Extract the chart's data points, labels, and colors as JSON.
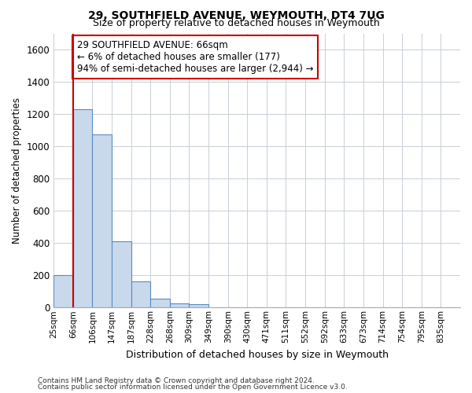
{
  "title1": "29, SOUTHFIELD AVENUE, WEYMOUTH, DT4 7UG",
  "title2": "Size of property relative to detached houses in Weymouth",
  "xlabel": "Distribution of detached houses by size in Weymouth",
  "ylabel": "Number of detached properties",
  "categories": [
    "25sqm",
    "66sqm",
    "106sqm",
    "147sqm",
    "187sqm",
    "228sqm",
    "268sqm",
    "309sqm",
    "349sqm",
    "390sqm",
    "430sqm",
    "471sqm",
    "511sqm",
    "552sqm",
    "592sqm",
    "633sqm",
    "673sqm",
    "714sqm",
    "754sqm",
    "795sqm",
    "835sqm"
  ],
  "values": [
    200,
    1230,
    1075,
    410,
    160,
    55,
    25,
    20,
    0,
    0,
    0,
    0,
    0,
    0,
    0,
    0,
    0,
    0,
    0,
    0,
    0
  ],
  "bar_color": "#c9d9ec",
  "bar_edge_color": "#5a8abf",
  "highlight_line_color": "#cc0000",
  "annotation_text": "29 SOUTHFIELD AVENUE: 66sqm\n← 6% of detached houses are smaller (177)\n94% of semi-detached houses are larger (2,944) →",
  "annotation_box_color": "#ffffff",
  "annotation_box_edge": "#cc0000",
  "ylim": [
    0,
    1700
  ],
  "yticks": [
    0,
    200,
    400,
    600,
    800,
    1000,
    1200,
    1400,
    1600
  ],
  "footer1": "Contains HM Land Registry data © Crown copyright and database right 2024.",
  "footer2": "Contains public sector information licensed under the Open Government Licence v3.0.",
  "bg_color": "#ffffff",
  "grid_color": "#c8cfd8"
}
